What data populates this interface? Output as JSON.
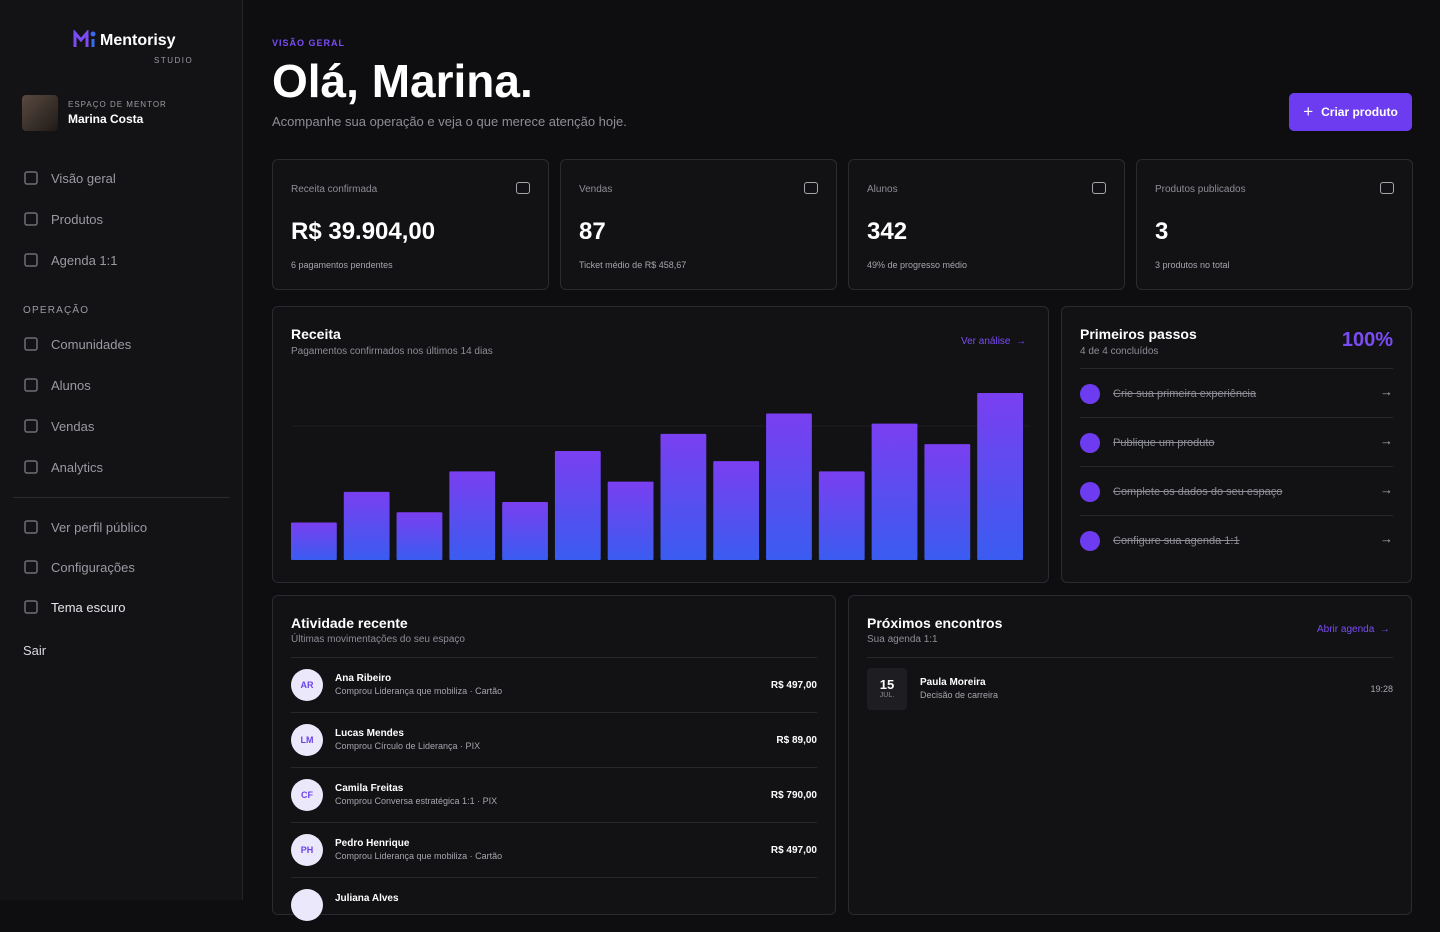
{
  "sidebar": {
    "brand": "Mentorisy",
    "brand_sub": "STUDIO",
    "profile_caption": "ESPAÇO DE MENTOR",
    "profile_name": "Marina Costa",
    "nav": [
      "Visão geral",
      "Produtos",
      "Agenda 1:1"
    ],
    "section": "OPERAÇÃO",
    "nav2": [
      "Comunidades",
      "Alunos",
      "Vendas",
      "Analytics"
    ],
    "links": [
      "Ver perfil público",
      "Configurações",
      "Tema escuro"
    ],
    "logout": "Sair"
  },
  "header": {
    "eyebrow": "VISÃO GERAL",
    "title": "Olá, Marina.",
    "subtitle": "Acompanhe sua operação e veja o que merece atenção hoje.",
    "button": "Criar produto"
  },
  "stats": [
    {
      "label": "Receita confirmada",
      "value": "R$ 39.904,00",
      "note": "6 pagamentos pendentes"
    },
    {
      "label": "Vendas",
      "value": "87",
      "note": "Ticket médio de R$ 458,67"
    },
    {
      "label": "Alunos",
      "value": "342",
      "note": "49% de progresso médio"
    },
    {
      "label": "Produtos publicados",
      "value": "3",
      "note": "3 produtos no total"
    }
  ],
  "revenue_chart": {
    "title": "Receita",
    "subtitle": "Pagamentos confirmados nos últimos 14 dias",
    "link": "Ver análise",
    "values": [
      1100,
      2000,
      1400,
      2600,
      1700,
      3200,
      2300,
      3700,
      2900,
      4300,
      2600,
      4000,
      3400,
      4900
    ]
  },
  "first_steps": {
    "title": "Primeiros passos",
    "subtitle": "4 de 4 concluídos",
    "percent": "100%",
    "items": [
      "Crie sua primeira experiência",
      "Publique um produto",
      "Complete os dados do seu espaço",
      "Configure sua agenda 1:1"
    ]
  },
  "activity": {
    "title": "Atividade recente",
    "subtitle": "Últimas movimentações do seu espaço",
    "rows": [
      {
        "initials": "AR",
        "name": "Ana Ribeiro",
        "detail": "Comprou Liderança que mobiliza · Cartão",
        "amount": "R$ 497,00"
      },
      {
        "initials": "LM",
        "name": "Lucas Mendes",
        "detail": "Comprou Círculo de Liderança · PIX",
        "amount": "R$ 89,00"
      },
      {
        "initials": "CF",
        "name": "Camila Freitas",
        "detail": "Comprou Conversa estratégica 1:1 · PIX",
        "amount": "R$ 790,00"
      },
      {
        "initials": "PH",
        "name": "Pedro Henrique",
        "detail": "Comprou Liderança que mobiliza · Cartão",
        "amount": "R$ 497,00"
      },
      {
        "name": "Juliana Alves"
      }
    ]
  },
  "meetings": {
    "title": "Próximos encontros",
    "subtitle": "Sua agenda 1:1",
    "link": "Abrir agenda",
    "items": [
      {
        "day": "15",
        "month": "JUL.",
        "name": "Paula Moreira",
        "topic": "Decisão de carreira",
        "time": "19:28"
      }
    ]
  }
}
